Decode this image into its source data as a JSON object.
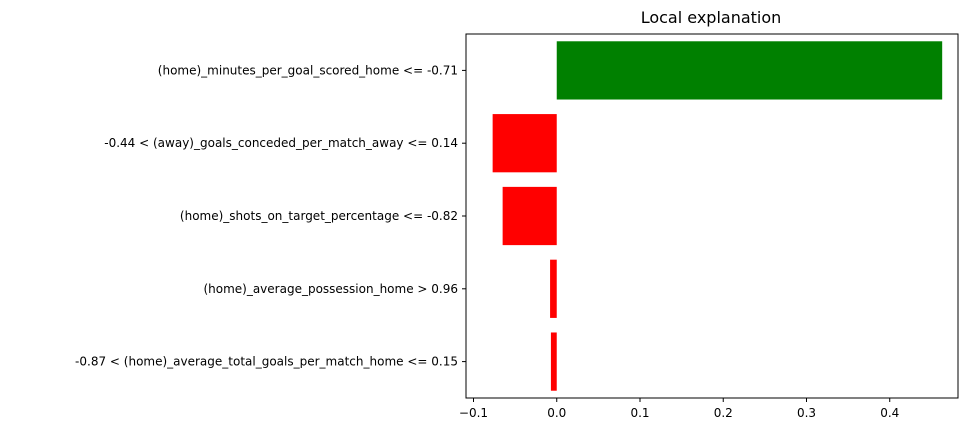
{
  "chart_data": {
    "type": "bar",
    "orientation": "horizontal",
    "title": "Local explanation",
    "xlabel": "",
    "ylabel": "",
    "xlim": [
      -0.109,
      0.482
    ],
    "xticks": [
      -0.1,
      0.0,
      0.1,
      0.2,
      0.3,
      0.4
    ],
    "xtick_labels": [
      "−0.1",
      "0.0",
      "0.1",
      "0.2",
      "0.3",
      "0.4"
    ],
    "grid": false,
    "categories": [
      "(home)_minutes_per_goal_scored_home <= -0.71",
      "-0.44 < (away)_goals_conceded_per_match_away <= 0.14",
      "(home)_shots_on_target_percentage <= -0.82",
      "(home)_average_possession_home > 0.96",
      "-0.87 < (home)_average_total_goals_per_match_home <= 0.15"
    ],
    "values": [
      0.463,
      -0.077,
      -0.065,
      -0.008,
      -0.007
    ],
    "colors": {
      "positive": "#008000",
      "negative": "#ff0000",
      "axis": "#000000"
    }
  }
}
